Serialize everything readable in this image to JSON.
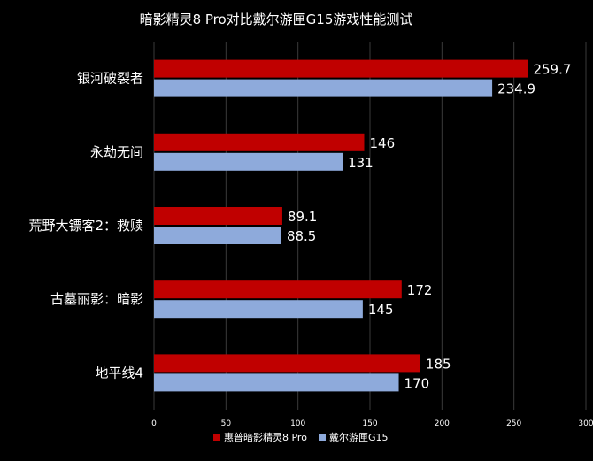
{
  "chart_data": {
    "type": "bar",
    "orientation": "horizontal",
    "title": "暗影精灵8 Pro对比戴尔游匣G15游戏性能测试",
    "categories": [
      "银河破裂者",
      "永劫无间",
      "荒野大镖客2：救赎",
      "古墓丽影：暗影",
      "地平线4"
    ],
    "series": [
      {
        "name": "惠普暗影精灵8 Pro",
        "color": "#c00000",
        "values": [
          259.7,
          146,
          89.1,
          172,
          185
        ]
      },
      {
        "name": "戴尔游匣G15",
        "color": "#8eaadb",
        "values": [
          234.9,
          131,
          88.5,
          145,
          170
        ]
      }
    ],
    "data_labels": [
      [
        "259.7",
        "146",
        "89.1",
        "172",
        "185"
      ],
      [
        "234.9",
        "131",
        "88.5",
        "145",
        "170"
      ]
    ],
    "xlim": [
      0,
      300
    ],
    "x_ticks": [
      "0",
      "50",
      "100",
      "150",
      "200",
      "250",
      "300"
    ],
    "xlabel": "",
    "ylabel": "",
    "grid": true,
    "legend_position": "bottom"
  }
}
